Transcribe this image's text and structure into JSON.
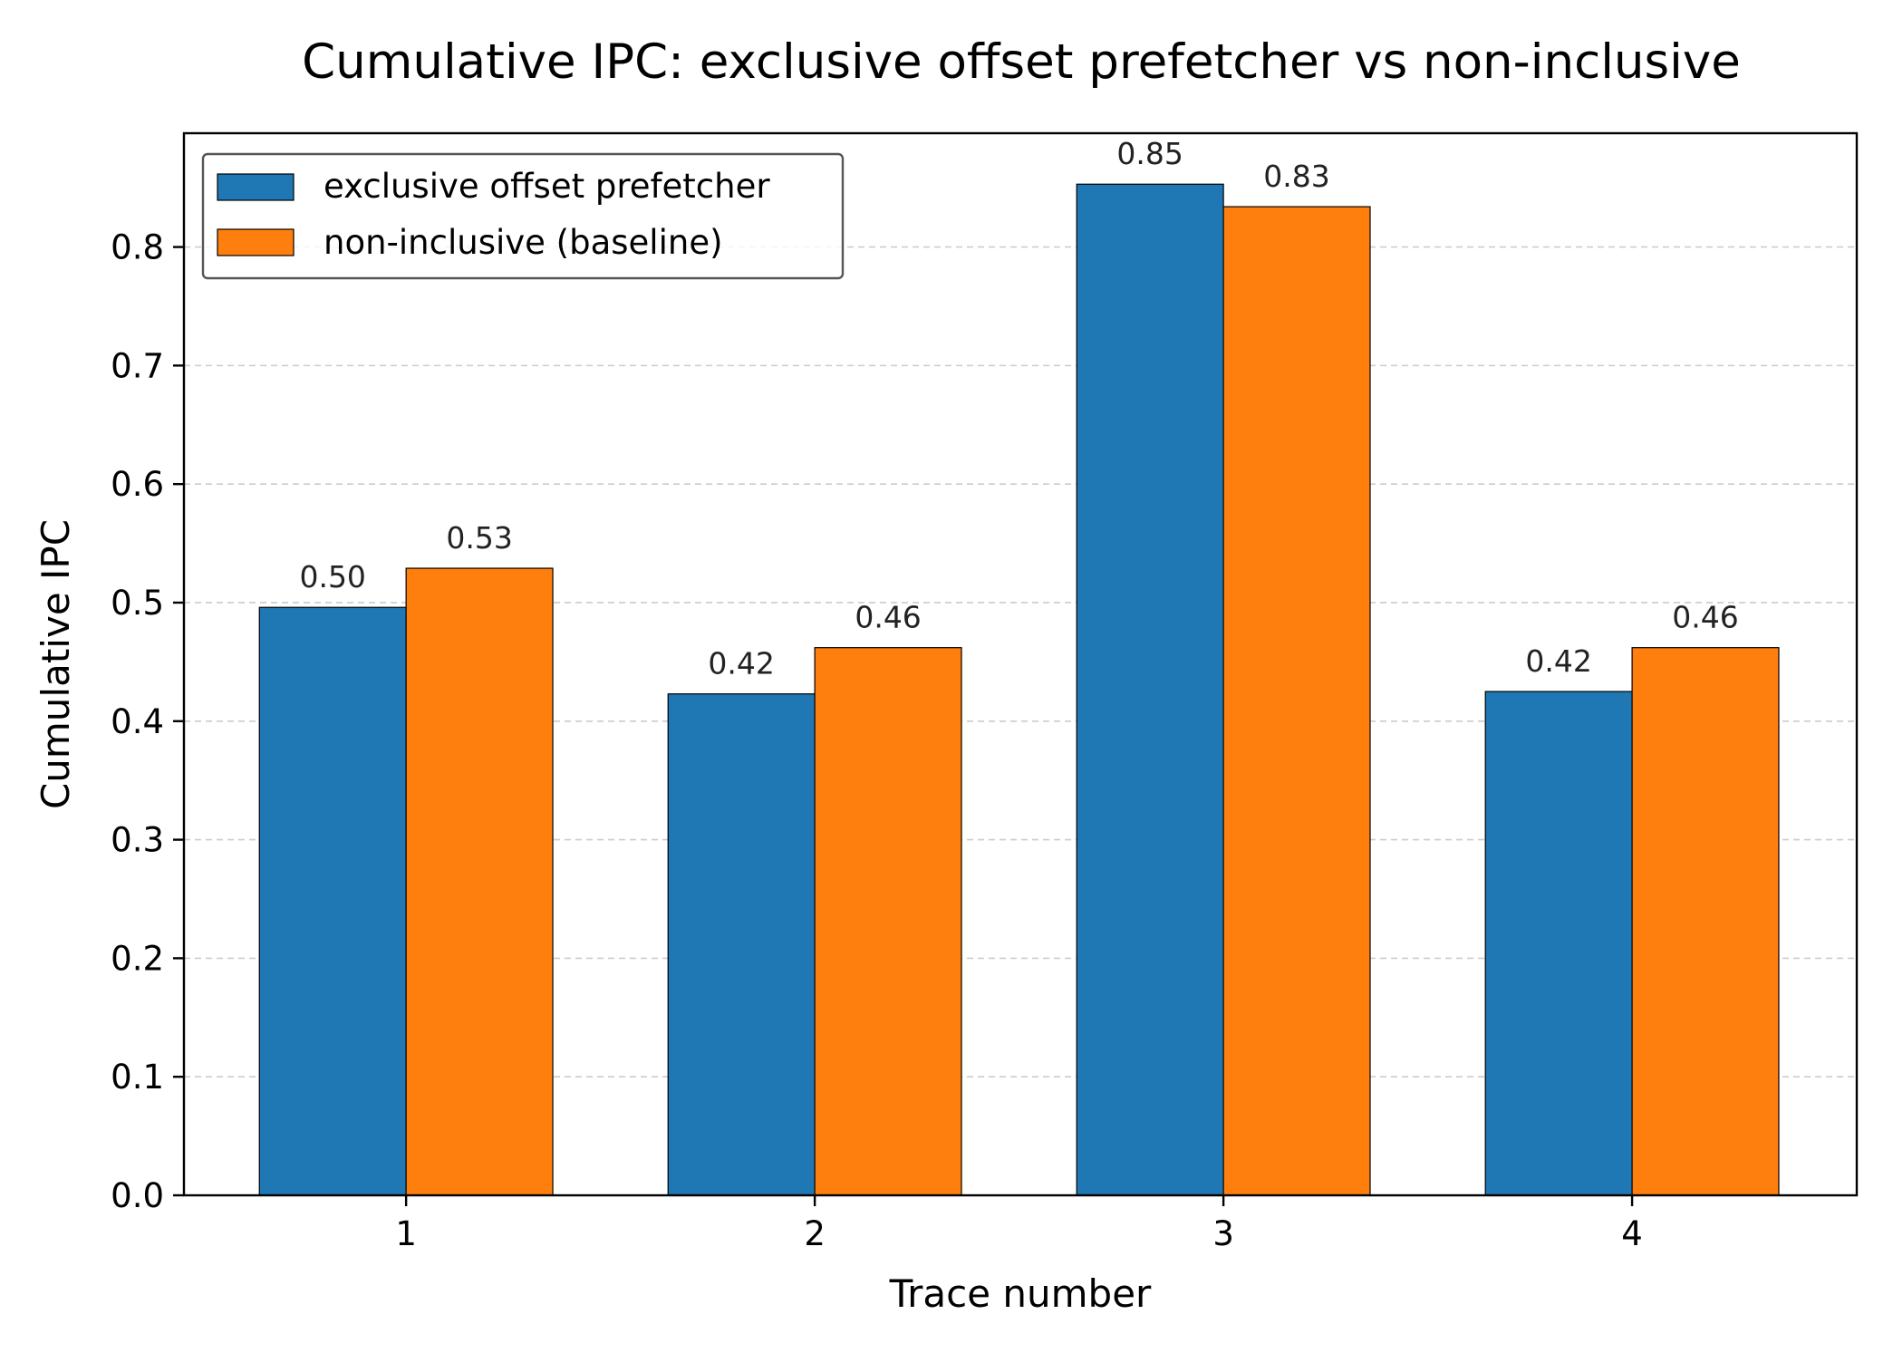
{
  "chart_data": {
    "type": "bar",
    "title": "Cumulative IPC: exclusive offset prefetcher vs non-inclusive",
    "xlabel": "Trace number",
    "ylabel": "Cumulative IPC",
    "categories": [
      "1",
      "2",
      "3",
      "4"
    ],
    "series": [
      {
        "name": "exclusive offset prefetcher",
        "color": "#1f77b4",
        "values": [
          0.496,
          0.423,
          0.853,
          0.425
        ],
        "labels": [
          "0.50",
          "0.42",
          "0.85",
          "0.42"
        ]
      },
      {
        "name": "non-inclusive (baseline)",
        "color": "#ff7f0e",
        "values": [
          0.529,
          0.462,
          0.834,
          0.462
        ],
        "labels": [
          "0.53",
          "0.46",
          "0.83",
          "0.46"
        ]
      }
    ],
    "ylim": [
      0,
      0.896
    ],
    "yticks": [
      {
        "value": 0.0,
        "label": "0.0"
      },
      {
        "value": 0.1,
        "label": "0.1"
      },
      {
        "value": 0.2,
        "label": "0.2"
      },
      {
        "value": 0.3,
        "label": "0.3"
      },
      {
        "value": 0.4,
        "label": "0.4"
      },
      {
        "value": 0.5,
        "label": "0.5"
      },
      {
        "value": 0.6,
        "label": "0.6"
      },
      {
        "value": 0.7,
        "label": "0.7"
      },
      {
        "value": 0.8,
        "label": "0.8"
      }
    ],
    "grid": "y-dashed",
    "legend_position": "top-left"
  }
}
